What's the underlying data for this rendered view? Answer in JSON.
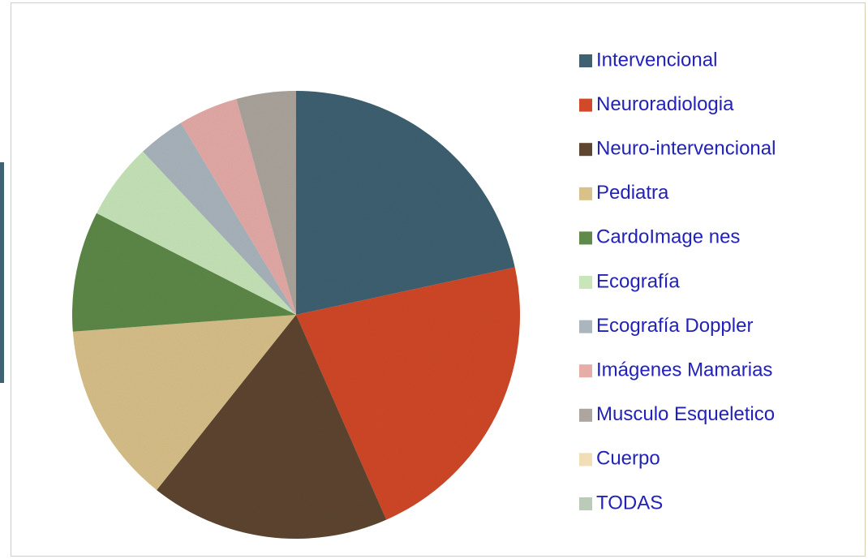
{
  "chart_data": {
    "type": "pie",
    "categories": [
      "Intervencional",
      "Neuroradiologia",
      "Neuro-intervencional",
      "Pediatra",
      "CardoImage nes",
      "Ecografía",
      "Ecografía Doppler",
      "Imágenes Mamarias",
      "Musculo Esqueletico",
      "Cuerpo",
      "TODAS"
    ],
    "values": [
      21.6,
      21.8,
      17.3,
      13.1,
      8.7,
      5.5,
      3.4,
      4.3,
      4.3,
      0,
      0
    ],
    "colors": [
      "#3f6272",
      "#d2492a",
      "#5e4631",
      "#d9c18a",
      "#5f8a49",
      "#c8e6ba",
      "#aab5bd",
      "#e6aca8",
      "#aca69e",
      "#f1ddb6",
      "#bacbb8"
    ],
    "legend": "right"
  }
}
